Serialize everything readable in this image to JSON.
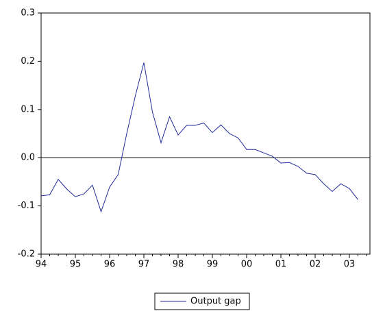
{
  "chart_data": {
    "type": "line",
    "x": [
      1994,
      1994.25,
      1994.5,
      1994.75,
      1995,
      1995.25,
      1995.5,
      1995.75,
      1996,
      1996.25,
      1996.5,
      1996.75,
      1997,
      1997.25,
      1997.5,
      1997.75,
      1998,
      1998.25,
      1998.5,
      1998.75,
      1999,
      1999.25,
      1999.5,
      1999.75,
      2000,
      2000.25,
      2000.5,
      2000.75,
      2001,
      2001.25,
      2001.5,
      2001.75,
      2002,
      2002.25,
      2002.5,
      2002.75,
      2003,
      2003.25
    ],
    "series": [
      {
        "name": "Output gap",
        "color": "#1f2a9a",
        "values": [
          -0.079,
          -0.077,
          -0.045,
          -0.065,
          -0.081,
          -0.075,
          -0.057,
          -0.112,
          -0.061,
          -0.035,
          0.05,
          0.128,
          0.197,
          0.095,
          0.031,
          0.085,
          0.047,
          0.067,
          0.067,
          0.072,
          0.052,
          0.068,
          0.05,
          0.041,
          0.017,
          0.017,
          0.01,
          0.003,
          -0.011,
          -0.01,
          -0.018,
          -0.032,
          -0.035,
          -0.054,
          -0.07,
          -0.054,
          -0.064,
          -0.087
        ]
      }
    ],
    "xlim": [
      1994,
      2003.6
    ],
    "xticks": [
      {
        "value": 1994,
        "label": "94"
      },
      {
        "value": 1995,
        "label": "95"
      },
      {
        "value": 1996,
        "label": "96"
      },
      {
        "value": 1997,
        "label": "97"
      },
      {
        "value": 1998,
        "label": "98"
      },
      {
        "value": 1999,
        "label": "99"
      },
      {
        "value": 2000,
        "label": "00"
      },
      {
        "value": 2001,
        "label": "01"
      },
      {
        "value": 2002,
        "label": "02"
      },
      {
        "value": 2003,
        "label": "03"
      }
    ],
    "ylim": [
      -0.2,
      0.3
    ],
    "yticks": [
      {
        "value": -0.2,
        "label": "-0.2"
      },
      {
        "value": -0.1,
        "label": "-0.1"
      },
      {
        "value": 0,
        "label": "0.0"
      },
      0.1,
      0.2,
      0.3
    ],
    "zero_line": true,
    "legend": "bottom"
  }
}
